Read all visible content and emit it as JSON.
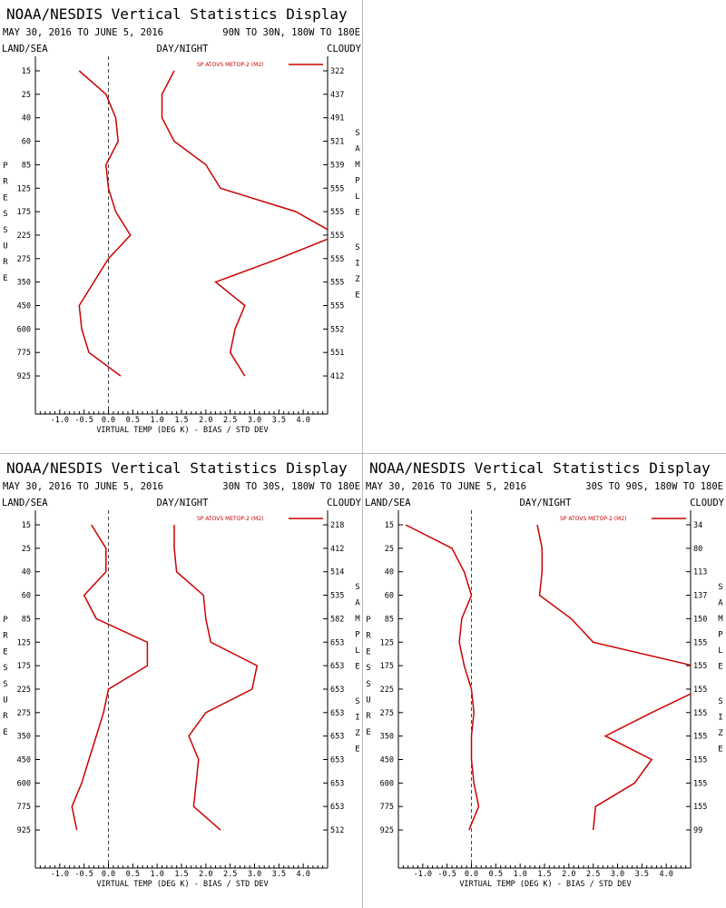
{
  "colors": {
    "series": "#cc0000",
    "axis": "#000000",
    "zero_line": "#444444",
    "background": "#ffffff"
  },
  "chart_data": [
    {
      "type": "line",
      "title": "NOAA/NESDIS Vertical Statistics Display",
      "date_range": "MAY 30, 2016 TO JUNE 5, 2016",
      "region": "90N TO 30N, 180W TO 180E",
      "land_sea": "LAND/SEA",
      "day_night": "DAY/NIGHT",
      "cloud_flag": "CLOUDY",
      "xlabel": "VIRTUAL TEMP (DEG K) - BIAS / STD DEV",
      "ylabel": "PRESSURE",
      "right_label": "SAMPLE SIZE",
      "legend": "SP ATOVS METOP-2 (M2)",
      "xlim": [
        -1.5,
        4.5
      ],
      "x_ticks": [
        "-1.0",
        "-0.5",
        "0.0",
        "0.5",
        "1.0",
        "1.5",
        "2.0",
        "2.5",
        "3.0",
        "3.5",
        "4.0"
      ],
      "pressure_levels": [
        "15",
        "25",
        "40",
        "60",
        "85",
        "125",
        "175",
        "225",
        "275",
        "350",
        "450",
        "600",
        "775",
        "925"
      ],
      "sample_size": [
        "322",
        "437",
        "491",
        "521",
        "539",
        "555",
        "555",
        "555",
        "555",
        "555",
        "555",
        "552",
        "551",
        "412"
      ],
      "series": [
        {
          "name": "BIAS",
          "values": [
            -0.6,
            -0.05,
            0.15,
            0.2,
            -0.05,
            0.0,
            0.15,
            0.45,
            0.0,
            -0.3,
            -0.6,
            -0.55,
            -0.4,
            0.25
          ]
        },
        {
          "name": "STD DEV",
          "values": [
            1.35,
            1.1,
            1.1,
            1.35,
            2.0,
            2.3,
            3.85,
            4.7,
            3.5,
            2.2,
            2.8,
            2.6,
            2.5,
            2.8
          ]
        }
      ]
    },
    {
      "type": "line",
      "title": "NOAA/NESDIS Vertical Statistics Display",
      "date_range": "MAY 30, 2016 TO JUNE 5, 2016",
      "region": "30N TO 30S, 180W TO 180E",
      "land_sea": "LAND/SEA",
      "day_night": "DAY/NIGHT",
      "cloud_flag": "CLOUDY",
      "xlabel": "VIRTUAL TEMP (DEG K) - BIAS / STD DEV",
      "ylabel": "PRESSURE",
      "right_label": "SAMPLE SIZE",
      "legend": "SP ATOVS METOP-2 (M2)",
      "xlim": [
        -1.5,
        4.5
      ],
      "x_ticks": [
        "-1.0",
        "-0.5",
        "0.0",
        "0.5",
        "1.0",
        "1.5",
        "2.0",
        "2.5",
        "3.0",
        "3.5",
        "4.0"
      ],
      "pressure_levels": [
        "15",
        "25",
        "40",
        "60",
        "85",
        "125",
        "175",
        "225",
        "275",
        "350",
        "450",
        "600",
        "775",
        "925"
      ],
      "sample_size": [
        "218",
        "412",
        "514",
        "535",
        "582",
        "653",
        "653",
        "653",
        "653",
        "653",
        "653",
        "653",
        "653",
        "512"
      ],
      "series": [
        {
          "name": "BIAS",
          "values": [
            -0.35,
            -0.05,
            -0.05,
            -0.5,
            -0.25,
            0.8,
            0.8,
            0.0,
            -0.1,
            -0.25,
            -0.4,
            -0.55,
            -0.75,
            -0.65
          ]
        },
        {
          "name": "STD DEV",
          "values": [
            1.35,
            1.35,
            1.4,
            1.95,
            2.0,
            2.1,
            3.05,
            2.95,
            2.0,
            1.65,
            1.85,
            1.8,
            1.75,
            2.3
          ]
        }
      ]
    },
    {
      "type": "line",
      "title": "NOAA/NESDIS Vertical Statistics Display",
      "date_range": "MAY 30, 2016 TO JUNE 5, 2016",
      "region": "30S TO 90S, 180W TO 180E",
      "land_sea": "LAND/SEA",
      "day_night": "DAY/NIGHT",
      "cloud_flag": "CLOUDY",
      "xlabel": "VIRTUAL TEMP (DEG K) - BIAS / STD DEV",
      "ylabel": "PRESSURE",
      "right_label": "SAMPLE SIZE",
      "legend": "SP ATOVS METOP-2 (M2)",
      "xlim": [
        -1.5,
        4.5
      ],
      "x_ticks": [
        "-1.0",
        "-0.5",
        "0.0",
        "0.5",
        "1.0",
        "1.5",
        "2.0",
        "2.5",
        "3.0",
        "3.5",
        "4.0"
      ],
      "pressure_levels": [
        "15",
        "25",
        "40",
        "60",
        "85",
        "125",
        "175",
        "225",
        "275",
        "350",
        "450",
        "600",
        "775",
        "925"
      ],
      "sample_size": [
        "34",
        "80",
        "113",
        "137",
        "150",
        "155",
        "155",
        "155",
        "155",
        "155",
        "155",
        "155",
        "155",
        "99"
      ],
      "series": [
        {
          "name": "BIAS",
          "values": [
            -1.35,
            -0.4,
            -0.15,
            0.0,
            -0.2,
            -0.25,
            -0.15,
            0.0,
            0.05,
            0.0,
            0.0,
            0.05,
            0.15,
            -0.05
          ]
        },
        {
          "name": "STD DEV",
          "values": [
            1.35,
            1.45,
            1.45,
            1.4,
            2.05,
            2.5,
            4.55,
            4.7,
            3.7,
            2.75,
            3.7,
            3.35,
            2.55,
            2.5
          ]
        }
      ]
    }
  ]
}
